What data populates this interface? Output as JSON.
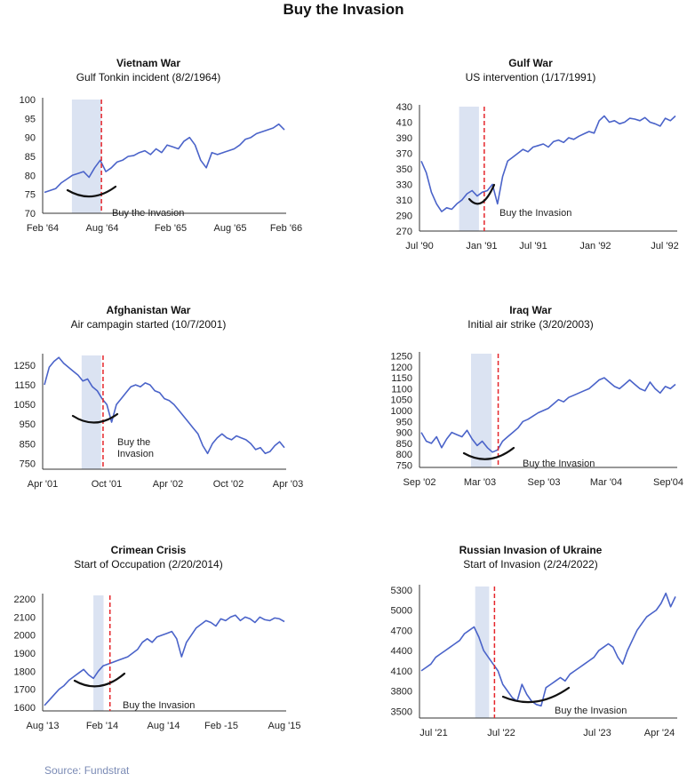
{
  "page": {
    "title": "Buy the Invasion",
    "source": "Source: Fundstrat"
  },
  "colors": {
    "line": "#4a63c9",
    "shade": "#dbe3f2",
    "event_line": "#e5252b",
    "arc": "#111111"
  },
  "chart_data": [
    {
      "type": "line",
      "title": "Vietnam War",
      "subtitle": "Gulf Tonkin incident (8/2/1964)",
      "annotation": "Buy the Invasion",
      "x_ticks": [
        "Feb '64",
        "Aug '64",
        "Feb '65",
        "Aug '65",
        "Feb '66"
      ],
      "y_ticks": [
        70,
        75,
        80,
        85,
        90,
        95,
        100
      ],
      "ylim": [
        70,
        100
      ],
      "x_range": [
        "1964-02",
        "1966-03"
      ],
      "shaded_region": [
        "1964-05",
        "1964-08"
      ],
      "event_date": "1964-08-02",
      "series_y": [
        75.5,
        76,
        76.5,
        78,
        79,
        80,
        80.5,
        81,
        79.5,
        82,
        84,
        81,
        82,
        83.5,
        84,
        85,
        85.2,
        86,
        86.5,
        85.5,
        87,
        86,
        88,
        87.5,
        87,
        89,
        90,
        88,
        84,
        82,
        86,
        85.5,
        86,
        86.5,
        87,
        88,
        89.5,
        90,
        91,
        91.5,
        92,
        92.5,
        93.5,
        92
      ]
    },
    {
      "type": "line",
      "title": "Gulf War",
      "subtitle": "US intervention (1/17/1991)",
      "annotation": "Buy the Invasion",
      "x_ticks": [
        "Jul '90",
        "Jan '91",
        "Jul '91",
        "Jan '92",
        "Jul '92"
      ],
      "y_ticks": [
        270,
        290,
        310,
        330,
        350,
        370,
        390,
        410,
        430
      ],
      "ylim": [
        270,
        430
      ],
      "x_range": [
        "1990-07",
        "1992-09"
      ],
      "shaded_region": [
        "1990-11",
        "1991-01"
      ],
      "event_date": "1991-01-17",
      "series_y": [
        360,
        345,
        320,
        305,
        295,
        300,
        298,
        305,
        310,
        318,
        322,
        315,
        320,
        322,
        330,
        305,
        340,
        360,
        365,
        370,
        375,
        372,
        378,
        380,
        382,
        378,
        385,
        387,
        384,
        390,
        388,
        392,
        395,
        398,
        396,
        412,
        418,
        410,
        412,
        408,
        410,
        415,
        414,
        412,
        416,
        410,
        408,
        405,
        415,
        412,
        418
      ]
    },
    {
      "type": "line",
      "title": "Afghanistan War",
      "subtitle": "Air campagin started (10/7/2001)",
      "annotation": "Buy the\nInvasion",
      "x_ticks": [
        "Apr '01",
        "Oct '01",
        "Apr '02",
        "Oct '02",
        "Apr '03"
      ],
      "y_ticks": [
        750,
        850,
        950,
        1050,
        1150,
        1250
      ],
      "ylim": [
        720,
        1300
      ],
      "x_range": [
        "2001-04",
        "2003-05"
      ],
      "shaded_region": [
        "2001-08",
        "2001-10"
      ],
      "event_date": "2001-10-07",
      "series_y": [
        1150,
        1240,
        1270,
        1290,
        1260,
        1240,
        1220,
        1200,
        1170,
        1180,
        1140,
        1120,
        1080,
        1050,
        960,
        1050,
        1080,
        1110,
        1140,
        1150,
        1140,
        1160,
        1150,
        1120,
        1110,
        1080,
        1070,
        1050,
        1020,
        990,
        960,
        930,
        900,
        840,
        800,
        850,
        880,
        900,
        880,
        870,
        890,
        880,
        870,
        850,
        820,
        830,
        800,
        810,
        840,
        860,
        830
      ]
    },
    {
      "type": "line",
      "title": "Iraq War",
      "subtitle": "Initial air strike (3/20/2003)",
      "annotation": "Buy the Invasion",
      "x_ticks": [
        "Sep '02",
        "Mar '03",
        "Sep '03",
        "Mar '04",
        "Sep'04"
      ],
      "y_ticks": [
        750,
        800,
        850,
        900,
        950,
        1000,
        1050,
        1100,
        1150,
        1200,
        1250
      ],
      "ylim": [
        740,
        1260
      ],
      "x_range": [
        "2002-08",
        "2004-09"
      ],
      "shaded_region": [
        "2003-01",
        "2003-03"
      ],
      "event_date": "2003-03-20",
      "series_y": [
        900,
        860,
        850,
        880,
        830,
        870,
        900,
        890,
        880,
        910,
        870,
        840,
        860,
        830,
        810,
        820,
        860,
        880,
        900,
        920,
        950,
        960,
        975,
        990,
        1000,
        1010,
        1030,
        1050,
        1040,
        1060,
        1070,
        1080,
        1090,
        1100,
        1120,
        1140,
        1150,
        1130,
        1110,
        1100,
        1120,
        1140,
        1120,
        1100,
        1090,
        1130,
        1100,
        1080,
        1110,
        1100,
        1120
      ]
    },
    {
      "type": "line",
      "title": "Crimean Crisis",
      "subtitle": "Start of Occupation (2/20/2014)",
      "annotation": "Buy the Invasion",
      "x_ticks": [
        "Aug '13",
        "Feb '14",
        "Aug '14",
        "Feb -15",
        "Aug '15"
      ],
      "y_ticks": [
        1600,
        1700,
        1800,
        1900,
        2000,
        2100,
        2200
      ],
      "ylim": [
        1580,
        2220
      ],
      "x_range": [
        "2013-08",
        "2015-08"
      ],
      "shaded_region": [
        "2014-01",
        "2014-02"
      ],
      "event_date": "2014-02-20",
      "series_y": [
        1610,
        1640,
        1670,
        1700,
        1720,
        1750,
        1770,
        1790,
        1810,
        1780,
        1760,
        1800,
        1830,
        1840,
        1850,
        1860,
        1870,
        1880,
        1900,
        1920,
        1960,
        1980,
        1960,
        1990,
        2000,
        2010,
        2020,
        1980,
        1880,
        1960,
        2000,
        2040,
        2060,
        2080,
        2070,
        2050,
        2090,
        2080,
        2100,
        2110,
        2080,
        2100,
        2090,
        2070,
        2100,
        2085,
        2080,
        2095,
        2090,
        2075
      ]
    },
    {
      "type": "line",
      "title": "Russian Invasion of Ukraine",
      "subtitle": "Start of Invasion (2/24/2022)",
      "annotation": "Buy the Invasion",
      "x_ticks": [
        "Jul '21",
        "Jul '22",
        "Jul '23",
        "Apr '24"
      ],
      "y_ticks": [
        3500,
        3800,
        4100,
        4400,
        4700,
        5000,
        5300
      ],
      "ylim": [
        3400,
        5350
      ],
      "x_range": [
        "2021-04",
        "2024-05"
      ],
      "shaded_region": [
        "2021-12",
        "2022-02"
      ],
      "event_date": "2022-02-24",
      "series_y": [
        4100,
        4150,
        4200,
        4300,
        4350,
        4400,
        4450,
        4500,
        4550,
        4650,
        4700,
        4750,
        4600,
        4400,
        4300,
        4200,
        4100,
        3900,
        3800,
        3700,
        3650,
        3900,
        3750,
        3650,
        3600,
        3580,
        3850,
        3900,
        3950,
        4000,
        3950,
        4050,
        4100,
        4150,
        4200,
        4250,
        4300,
        4400,
        4450,
        4500,
        4450,
        4300,
        4200,
        4400,
        4550,
        4700,
        4800,
        4900,
        4950,
        5000,
        5100,
        5250,
        5050,
        5200
      ]
    }
  ]
}
